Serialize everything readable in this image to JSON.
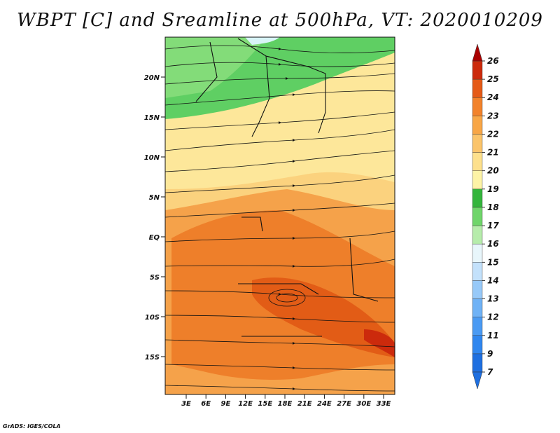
{
  "title": "WBPT [C] and Sreamline at 500hPa, VT: 2020010209",
  "footer": "GrADS: IGES/COLA",
  "lat_labels": [
    "20N",
    "15N",
    "10N",
    "5N",
    "EQ",
    "5S",
    "10S",
    "15S"
  ],
  "lon_labels": [
    "3E",
    "6E",
    "9E",
    "12E",
    "15E",
    "18E",
    "21E",
    "24E",
    "27E",
    "30E",
    "33E"
  ],
  "colorbar": {
    "labels": [
      "7",
      "9",
      "11",
      "12",
      "13",
      "14",
      "15",
      "16",
      "17",
      "18",
      "19",
      "20",
      "21",
      "22",
      "23",
      "24",
      "25",
      "26"
    ],
    "colors": [
      "#1e6fe0",
      "#2f86ef",
      "#4a9af3",
      "#6fb2f6",
      "#97c9f8",
      "#c3e1fb",
      "#e8f6fb",
      "#b6ecab",
      "#6fd56a",
      "#34b53c",
      "#fdf3a6",
      "#fde08c",
      "#fbc46a",
      "#f8a646",
      "#f2822b",
      "#e55a17",
      "#cc2a0c",
      "#aa0000"
    ]
  }
}
